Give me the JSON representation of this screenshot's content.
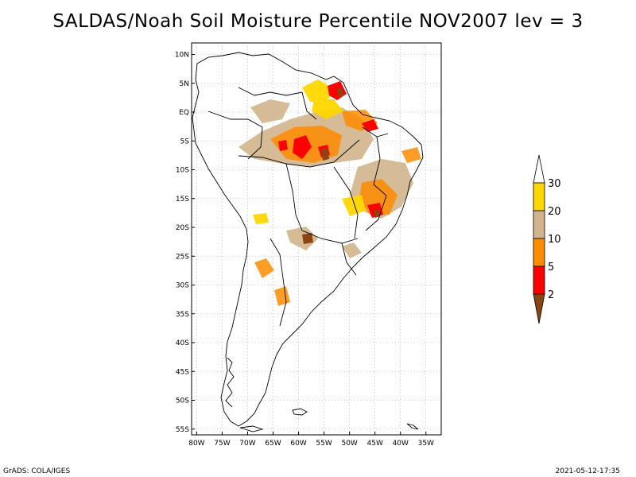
{
  "title": "SALDAS/Noah Soil Moisture Percentile NOV2007 lev = 3",
  "lat_ticks": [
    "10N",
    "5N",
    "EQ",
    "5S",
    "10S",
    "15S",
    "20S",
    "25S",
    "30S",
    "35S",
    "40S",
    "45S",
    "50S",
    "55S"
  ],
  "lon_ticks": [
    "80W",
    "75W",
    "70W",
    "65W",
    "60W",
    "55W",
    "50W",
    "45W",
    "40W",
    "35W"
  ],
  "colorbar": {
    "labels": [
      "2",
      "5",
      "10",
      "20",
      "30"
    ],
    "colors": [
      "#8b4513",
      "#ff0000",
      "#ff8c00",
      "#d2b48c",
      "#ffd700",
      "#ffffff"
    ]
  },
  "footer": {
    "left": "GrADS: COLA/IGES",
    "right": "2021-05-12-17:35"
  }
}
